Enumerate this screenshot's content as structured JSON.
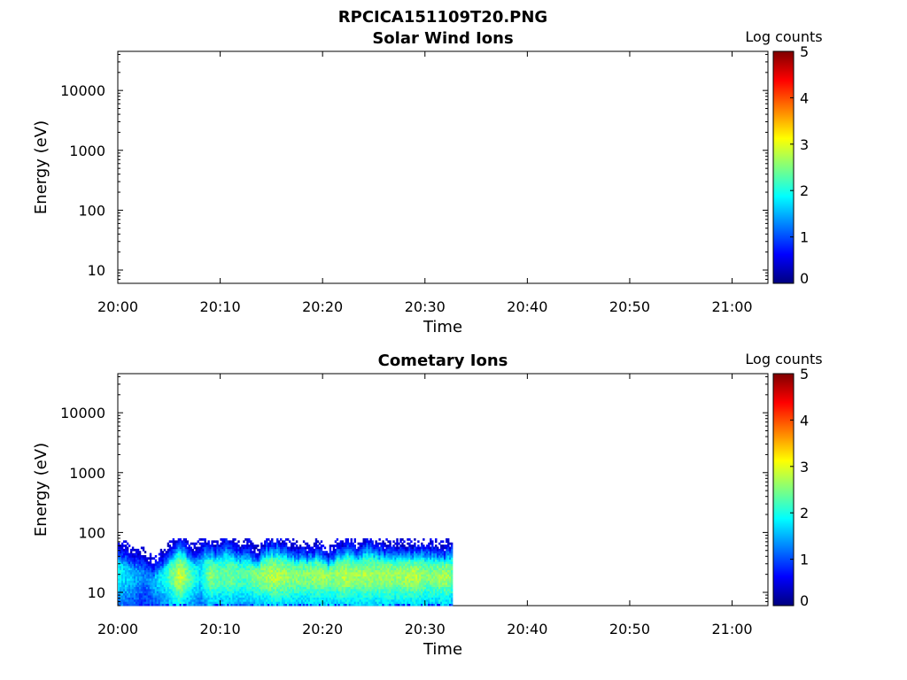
{
  "figure_title": "RPCICA151109T20.PNG",
  "colors": {
    "colormap": [
      "#00007f",
      "#0000ff",
      "#007fff",
      "#00ffff",
      "#7fff7f",
      "#ffff00",
      "#ff7f00",
      "#ff0000",
      "#7f0000"
    ]
  },
  "chart_data": [
    {
      "type": "heatmap",
      "title": "Solar Wind Ions",
      "xlabel": "Time",
      "ylabel": "Energy (eV)",
      "x_ticks": [
        "20:00",
        "20:10",
        "20:20",
        "20:30",
        "20:40",
        "20:50",
        "21:00"
      ],
      "x_tick_minutes": [
        0,
        10,
        20,
        30,
        40,
        50,
        60
      ],
      "xlim_minutes": [
        0,
        63.5
      ],
      "y_scale": "log",
      "y_ticks": [
        "10",
        "100",
        "1000",
        "10000"
      ],
      "y_tick_values": [
        10,
        100,
        1000,
        10000
      ],
      "ylim": [
        6,
        45000
      ],
      "colorbar": {
        "label": "Log counts",
        "ticks": [
          "0",
          "1",
          "2",
          "3",
          "4",
          "5"
        ],
        "range": [
          0,
          5
        ]
      },
      "data": []
    },
    {
      "type": "heatmap",
      "title": "Cometary Ions",
      "xlabel": "Time",
      "ylabel": "Energy (eV)",
      "x_ticks": [
        "20:00",
        "20:10",
        "20:20",
        "20:30",
        "20:40",
        "20:50",
        "21:00"
      ],
      "x_tick_minutes": [
        0,
        10,
        20,
        30,
        40,
        50,
        60
      ],
      "xlim_minutes": [
        0,
        63.5
      ],
      "y_scale": "log",
      "y_ticks": [
        "10",
        "100",
        "1000",
        "10000"
      ],
      "y_tick_values": [
        10,
        100,
        1000,
        10000
      ],
      "ylim": [
        6,
        45000
      ],
      "colorbar": {
        "label": "Log counts",
        "ticks": [
          "0",
          "1",
          "2",
          "3",
          "4",
          "5"
        ],
        "range": [
          0,
          5
        ]
      },
      "data_time_range_minutes": [
        0,
        32.7
      ],
      "data_energy_range_ev": [
        6,
        80
      ],
      "upper_edge_ev": [
        [
          0.0,
          55
        ],
        [
          1.5,
          48
        ],
        [
          2.5,
          38
        ],
        [
          3.5,
          30
        ],
        [
          4.5,
          42
        ],
        [
          5.5,
          60
        ],
        [
          6.0,
          78
        ],
        [
          7.0,
          55
        ],
        [
          7.5,
          45
        ],
        [
          8.5,
          72
        ],
        [
          9.5,
          60
        ],
        [
          10.5,
          78
        ],
        [
          11.5,
          55
        ],
        [
          12.5,
          65
        ],
        [
          13.5,
          45
        ],
        [
          14.5,
          70
        ],
        [
          15.5,
          72
        ],
        [
          16.5,
          62
        ],
        [
          17.5,
          55
        ],
        [
          18.5,
          50
        ],
        [
          19.5,
          62
        ],
        [
          20.5,
          42
        ],
        [
          21.5,
          60
        ],
        [
          22.5,
          70
        ],
        [
          23.5,
          56
        ],
        [
          24.5,
          78
        ],
        [
          25.5,
          62
        ],
        [
          26.5,
          58
        ],
        [
          27.5,
          65
        ],
        [
          28.5,
          55
        ],
        [
          29.5,
          62
        ],
        [
          30.5,
          58
        ],
        [
          31.5,
          50
        ],
        [
          32.7,
          62
        ]
      ],
      "mean_log_counts": [
        [
          0.0,
          1.9
        ],
        [
          1.5,
          1.5
        ],
        [
          2.5,
          1.2
        ],
        [
          3.5,
          1.6
        ],
        [
          4.5,
          2.0
        ],
        [
          5.5,
          2.6
        ],
        [
          6.0,
          3.0
        ],
        [
          7.0,
          2.2
        ],
        [
          8.0,
          1.8
        ],
        [
          9.0,
          2.6
        ],
        [
          10.0,
          2.3
        ],
        [
          11.0,
          2.5
        ],
        [
          12.0,
          2.2
        ],
        [
          13.0,
          2.4
        ],
        [
          14.0,
          2.6
        ],
        [
          15.0,
          2.8
        ],
        [
          16.0,
          2.7
        ],
        [
          17.0,
          2.6
        ],
        [
          18.0,
          2.5
        ],
        [
          19.0,
          2.6
        ],
        [
          20.0,
          2.7
        ],
        [
          21.0,
          2.5
        ],
        [
          22.0,
          2.8
        ],
        [
          23.0,
          2.6
        ],
        [
          24.0,
          2.7
        ],
        [
          25.0,
          2.6
        ],
        [
          26.0,
          2.7
        ],
        [
          27.0,
          2.6
        ],
        [
          28.0,
          2.7
        ],
        [
          29.0,
          2.8
        ],
        [
          30.0,
          2.5
        ],
        [
          31.0,
          2.6
        ],
        [
          32.0,
          2.7
        ],
        [
          32.7,
          2.4
        ]
      ],
      "peak_energy_ev": 18
    }
  ]
}
